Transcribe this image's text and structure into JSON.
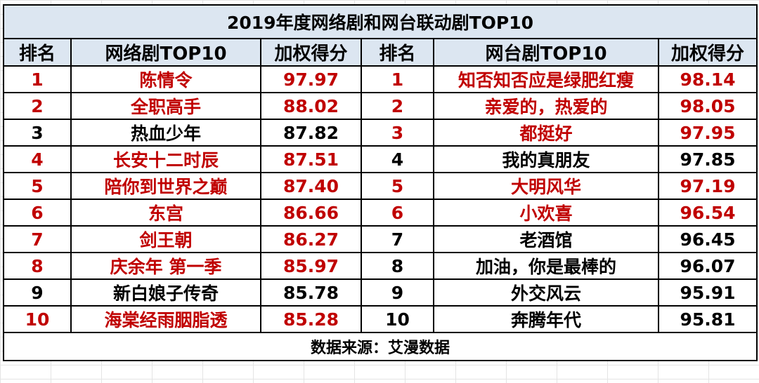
{
  "title": "2019年度网络剧和网台联动剧TOP10",
  "headers": {
    "rank_left": "排名",
    "web_drama": "网络剧TOP10",
    "score_left": "加权得分",
    "rank_right": "排名",
    "tv_drama": "网台剧TOP10",
    "score_right": "加权得分"
  },
  "colors": {
    "highlight": "#c00000",
    "header_bg": "#dce6f1"
  },
  "rows": [
    {
      "web_rank": "1",
      "web_name": "陈情令",
      "web_score": "97.97",
      "web_red": true,
      "tv_rank": "1",
      "tv_name": "知否知否应是绿肥红瘦",
      "tv_score": "98.14",
      "tv_red": true
    },
    {
      "web_rank": "2",
      "web_name": "全职高手",
      "web_score": "88.02",
      "web_red": true,
      "tv_rank": "2",
      "tv_name": "亲爱的，热爱的",
      "tv_score": "98.05",
      "tv_red": true
    },
    {
      "web_rank": "3",
      "web_name": "热血少年",
      "web_score": "87.82",
      "web_red": false,
      "tv_rank": "3",
      "tv_name": "都挺好",
      "tv_score": "97.95",
      "tv_red": true
    },
    {
      "web_rank": "4",
      "web_name": "长安十二时辰",
      "web_score": "87.51",
      "web_red": true,
      "tv_rank": "4",
      "tv_name": "我的真朋友",
      "tv_score": "97.85",
      "tv_red": false
    },
    {
      "web_rank": "5",
      "web_name": "陪你到世界之巅",
      "web_score": "87.40",
      "web_red": true,
      "tv_rank": "5",
      "tv_name": "大明风华",
      "tv_score": "97.19",
      "tv_red": true
    },
    {
      "web_rank": "6",
      "web_name": "东宫",
      "web_score": "86.66",
      "web_red": true,
      "tv_rank": "6",
      "tv_name": "小欢喜",
      "tv_score": "96.54",
      "tv_red": true
    },
    {
      "web_rank": "7",
      "web_name": "剑王朝",
      "web_score": "86.27",
      "web_red": true,
      "tv_rank": "7",
      "tv_name": "老酒馆",
      "tv_score": "96.45",
      "tv_red": false
    },
    {
      "web_rank": "8",
      "web_name": "庆余年 第一季",
      "web_score": "85.97",
      "web_red": true,
      "tv_rank": "8",
      "tv_name": "加油，你是最棒的",
      "tv_score": "96.07",
      "tv_red": false
    },
    {
      "web_rank": "9",
      "web_name": "新白娘子传奇",
      "web_score": "85.78",
      "web_red": false,
      "tv_rank": "9",
      "tv_name": "外交风云",
      "tv_score": "95.91",
      "tv_red": false
    },
    {
      "web_rank": "10",
      "web_name": "海棠经雨胭脂透",
      "web_score": "85.28",
      "web_red": true,
      "tv_rank": "10",
      "tv_name": "奔腾年代",
      "tv_score": "95.81",
      "tv_red": false
    }
  ],
  "source": "数据来源：艾漫数据"
}
